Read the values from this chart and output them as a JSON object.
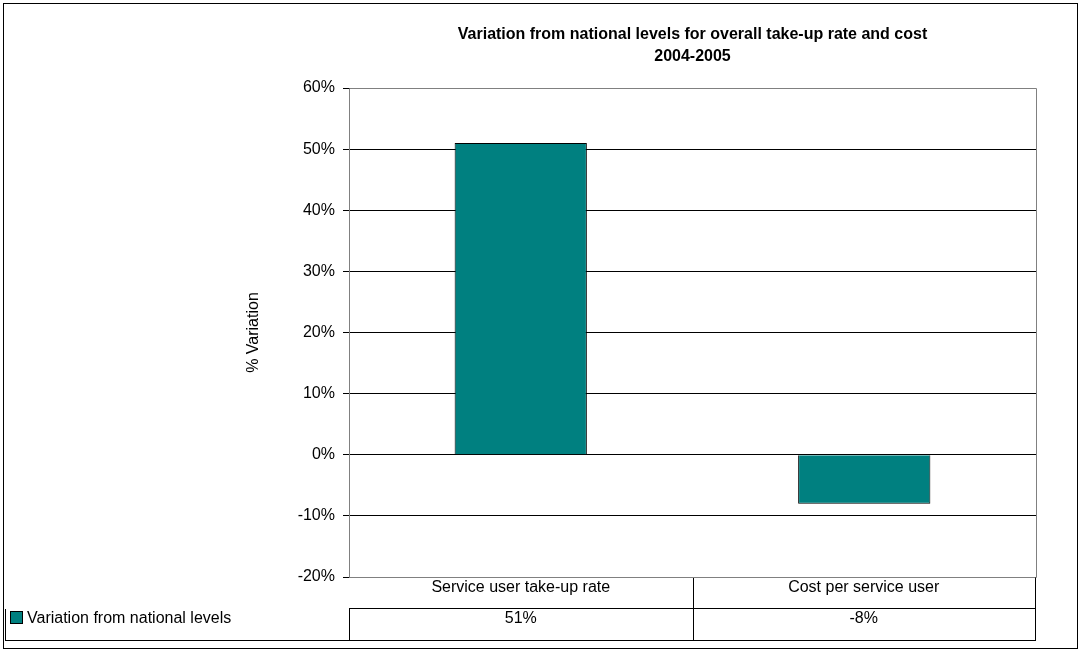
{
  "chart_data": {
    "type": "bar",
    "title": "Variation from national levels for overall take-up rate and cost 2004-2005",
    "ylabel": "% Variation",
    "categories": [
      "Service user take-up rate",
      "Cost per service user"
    ],
    "series": [
      {
        "name": "Variation from national levels",
        "color": "#008080",
        "values": [
          51,
          -8
        ],
        "value_labels": [
          "51%",
          "-8%"
        ]
      }
    ],
    "ylim": [
      -20,
      60
    ],
    "yticks": [
      {
        "value": -20,
        "label": "-20%"
      },
      {
        "value": -10,
        "label": "-10%"
      },
      {
        "value": 0,
        "label": "0%"
      },
      {
        "value": 10,
        "label": "10%"
      },
      {
        "value": 20,
        "label": "20%"
      },
      {
        "value": 30,
        "label": "30%"
      },
      {
        "value": 40,
        "label": "40%"
      },
      {
        "value": 50,
        "label": "50%"
      },
      {
        "value": 60,
        "label": "60%"
      }
    ],
    "grid": "y",
    "legend": "bottom left"
  }
}
